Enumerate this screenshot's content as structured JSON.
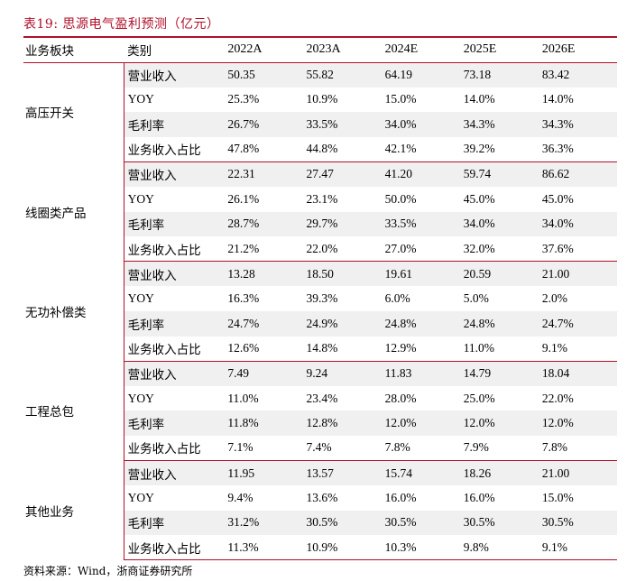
{
  "title": "表19:  思源电气盈利预测（亿元）",
  "header": {
    "segment": "业务板块",
    "category": "类别",
    "years": [
      "2022A",
      "2023A",
      "2024E",
      "2025E",
      "2026E"
    ]
  },
  "groups": [
    {
      "segment": "高压开关",
      "rows": [
        {
          "label": "营业收入",
          "values": [
            "50.35",
            "55.82",
            "64.19",
            "73.18",
            "83.42"
          ]
        },
        {
          "label": "YOY",
          "values": [
            "25.3%",
            "10.9%",
            "15.0%",
            "14.0%",
            "14.0%"
          ]
        },
        {
          "label": "毛利率",
          "values": [
            "26.7%",
            "33.5%",
            "34.0%",
            "34.3%",
            "34.3%"
          ]
        },
        {
          "label": "业务收入占比",
          "values": [
            "47.8%",
            "44.8%",
            "42.1%",
            "39.2%",
            "36.3%"
          ]
        }
      ]
    },
    {
      "segment": "线圈类产品",
      "rows": [
        {
          "label": "营业收入",
          "values": [
            "22.31",
            "27.47",
            "41.20",
            "59.74",
            "86.62"
          ]
        },
        {
          "label": "YOY",
          "values": [
            "26.1%",
            "23.1%",
            "50.0%",
            "45.0%",
            "45.0%"
          ]
        },
        {
          "label": "毛利率",
          "values": [
            "28.7%",
            "29.7%",
            "33.5%",
            "34.0%",
            "34.0%"
          ]
        },
        {
          "label": "业务收入占比",
          "values": [
            "21.2%",
            "22.0%",
            "27.0%",
            "32.0%",
            "37.6%"
          ]
        }
      ]
    },
    {
      "segment": "无功补偿类",
      "rows": [
        {
          "label": "营业收入",
          "values": [
            "13.28",
            "18.50",
            "19.61",
            "20.59",
            "21.00"
          ]
        },
        {
          "label": "YOY",
          "values": [
            "16.3%",
            "39.3%",
            "6.0%",
            "5.0%",
            "2.0%"
          ]
        },
        {
          "label": "毛利率",
          "values": [
            "24.7%",
            "24.9%",
            "24.8%",
            "24.8%",
            "24.7%"
          ]
        },
        {
          "label": "业务收入占比",
          "values": [
            "12.6%",
            "14.8%",
            "12.9%",
            "11.0%",
            "9.1%"
          ]
        }
      ]
    },
    {
      "segment": "工程总包",
      "rows": [
        {
          "label": "营业收入",
          "values": [
            "7.49",
            "9.24",
            "11.83",
            "14.79",
            "18.04"
          ]
        },
        {
          "label": "YOY",
          "values": [
            "11.0%",
            "23.4%",
            "28.0%",
            "25.0%",
            "22.0%"
          ]
        },
        {
          "label": "毛利率",
          "values": [
            "11.8%",
            "12.8%",
            "12.0%",
            "12.0%",
            "12.0%"
          ]
        },
        {
          "label": "业务收入占比",
          "values": [
            "7.1%",
            "7.4%",
            "7.8%",
            "7.9%",
            "7.8%"
          ]
        }
      ]
    },
    {
      "segment": "其他业务",
      "rows": [
        {
          "label": "营业收入",
          "values": [
            "11.95",
            "13.57",
            "15.74",
            "18.26",
            "21.00"
          ]
        },
        {
          "label": "YOY",
          "values": [
            "9.4%",
            "13.6%",
            "16.0%",
            "16.0%",
            "15.0%"
          ]
        },
        {
          "label": "毛利率",
          "values": [
            "31.2%",
            "30.5%",
            "30.5%",
            "30.5%",
            "30.5%"
          ]
        },
        {
          "label": "业务收入占比",
          "values": [
            "11.3%",
            "10.9%",
            "10.3%",
            "9.8%",
            "9.1%"
          ]
        }
      ]
    }
  ],
  "source": "资料来源：Wind，浙商证券研究所",
  "colors": {
    "accent": "#b0102a",
    "shade": "#f0f0f0"
  }
}
